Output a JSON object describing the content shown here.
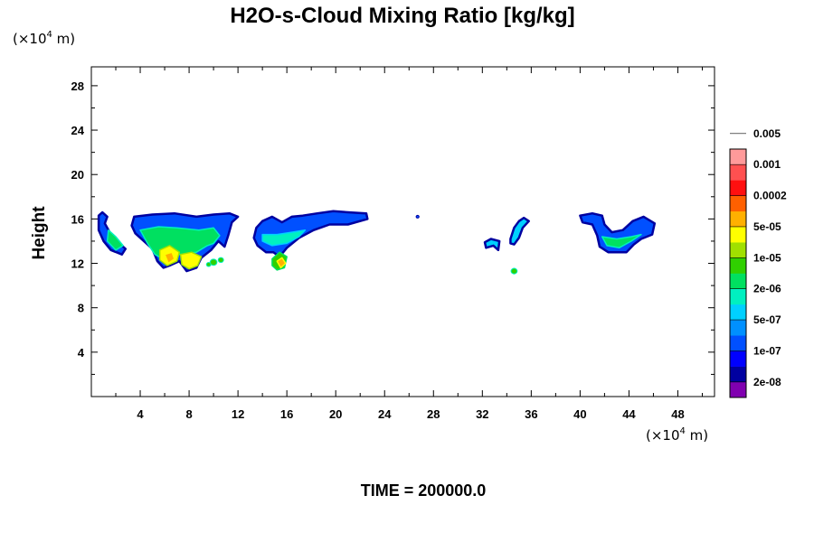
{
  "chart_data": {
    "type": "heatmap",
    "title": "H2O-s-Cloud Mixing Ratio [kg/kg]",
    "ylabel": "Height",
    "xlabel": "",
    "x_unit_prefix": "(×10",
    "x_unit_exp": "4",
    "x_unit_suffix": " m)",
    "y_unit_prefix": "(×10",
    "y_unit_exp": "4",
    "y_unit_suffix": " m)",
    "xlim": [
      0,
      51
    ],
    "ylim": [
      0,
      29.7
    ],
    "x_ticks": [
      4,
      8,
      12,
      16,
      20,
      24,
      28,
      32,
      36,
      40,
      44,
      48
    ],
    "x_tick_labels": [
      "4",
      "8",
      "12",
      "16",
      "20",
      "24",
      "28",
      "32",
      "36",
      "40",
      "44",
      "48"
    ],
    "y_ticks": [
      4,
      8,
      12,
      16,
      20,
      24,
      28
    ],
    "y_tick_labels": [
      "4",
      "8",
      "12",
      "16",
      "20",
      "24",
      "28"
    ],
    "colorbar": {
      "colors": [
        "#8000b0",
        "#0000a0",
        "#0000ff",
        "#0050ff",
        "#0090ff",
        "#00d0ff",
        "#00f0c0",
        "#00e060",
        "#30d000",
        "#a0e000",
        "#ffff00",
        "#ffb000",
        "#ff6000",
        "#ff1010",
        "#ff5050",
        "#ff9a9a"
      ],
      "labels": [
        "2e-08",
        "1e-07",
        "5e-07",
        "2e-06",
        "1e-05",
        "5e-05",
        "0.0002",
        "0.001",
        "0.005"
      ]
    },
    "cloud_regions": [
      {
        "name": "cloud-1",
        "outline": [
          [
            0.6,
            16.3
          ],
          [
            0.9,
            16.6
          ],
          [
            1.3,
            16.2
          ],
          [
            1.1,
            15.6
          ],
          [
            1.5,
            14.8
          ],
          [
            2.1,
            14.0
          ],
          [
            2.8,
            13.3
          ],
          [
            2.5,
            12.8
          ],
          [
            1.6,
            13.2
          ],
          [
            1.0,
            14.0
          ],
          [
            0.6,
            15.0
          ]
        ],
        "level": 3
      },
      {
        "name": "cloud-2",
        "outline": [
          [
            3.5,
            16.2
          ],
          [
            5.0,
            16.4
          ],
          [
            6.8,
            16.5
          ],
          [
            8.6,
            16.2
          ],
          [
            10.0,
            16.4
          ],
          [
            11.3,
            16.5
          ],
          [
            12.0,
            16.2
          ],
          [
            11.5,
            15.7
          ],
          [
            11.2,
            14.5
          ],
          [
            10.9,
            13.5
          ],
          [
            10.4,
            14.0
          ],
          [
            9.8,
            13.2
          ],
          [
            9.0,
            12.5
          ],
          [
            8.6,
            11.6
          ],
          [
            7.8,
            11.3
          ],
          [
            7.2,
            12.2
          ],
          [
            6.4,
            11.8
          ],
          [
            5.9,
            11.6
          ],
          [
            5.4,
            12.2
          ],
          [
            5.0,
            13.3
          ],
          [
            4.3,
            14.0
          ],
          [
            3.6,
            14.7
          ],
          [
            3.3,
            15.4
          ]
        ],
        "level": 3
      },
      {
        "name": "cloud-3",
        "outline": [
          [
            13.5,
            15.2
          ],
          [
            14.0,
            15.8
          ],
          [
            14.8,
            16.2
          ],
          [
            15.6,
            15.7
          ],
          [
            16.4,
            16.2
          ],
          [
            17.3,
            16.3
          ],
          [
            18.5,
            16.5
          ],
          [
            19.8,
            16.7
          ],
          [
            21.0,
            16.6
          ],
          [
            22.5,
            16.5
          ],
          [
            22.6,
            16.0
          ],
          [
            21.0,
            15.5
          ],
          [
            19.5,
            15.5
          ],
          [
            18.2,
            15.0
          ],
          [
            17.0,
            14.3
          ],
          [
            16.0,
            13.4
          ],
          [
            15.4,
            12.6
          ],
          [
            14.9,
            13.0
          ],
          [
            14.3,
            13.0
          ],
          [
            13.6,
            13.6
          ],
          [
            13.3,
            14.3
          ]
        ],
        "level": 3
      },
      {
        "name": "cloud-4",
        "outline": [
          [
            32.2,
            13.9
          ],
          [
            32.7,
            14.2
          ],
          [
            33.4,
            14.0
          ],
          [
            33.3,
            13.2
          ],
          [
            32.9,
            13.6
          ],
          [
            32.3,
            13.4
          ]
        ],
        "level": 5
      },
      {
        "name": "cloud-5",
        "outline": [
          [
            34.3,
            14.2
          ],
          [
            34.6,
            15.2
          ],
          [
            35.0,
            15.8
          ],
          [
            35.4,
            16.1
          ],
          [
            35.8,
            15.8
          ],
          [
            35.3,
            15.2
          ],
          [
            35.0,
            14.3
          ],
          [
            34.6,
            13.7
          ],
          [
            34.3,
            13.8
          ]
        ],
        "level": 5
      },
      {
        "name": "cloud-6",
        "outline": [
          [
            40.0,
            16.3
          ],
          [
            41.0,
            16.5
          ],
          [
            41.8,
            16.3
          ],
          [
            42.0,
            15.5
          ],
          [
            42.6,
            14.8
          ],
          [
            43.5,
            15.0
          ],
          [
            44.3,
            15.8
          ],
          [
            45.2,
            16.2
          ],
          [
            46.1,
            15.6
          ],
          [
            45.9,
            14.6
          ],
          [
            45.0,
            14.2
          ],
          [
            44.4,
            13.7
          ],
          [
            43.8,
            13.0
          ],
          [
            42.3,
            13.0
          ],
          [
            41.6,
            13.5
          ],
          [
            41.4,
            14.5
          ],
          [
            41.0,
            15.5
          ],
          [
            40.2,
            15.7
          ]
        ],
        "level": 3
      }
    ],
    "cloud_cores": [
      {
        "name": "core-1",
        "outline": [
          [
            1.4,
            15.0
          ],
          [
            2.0,
            14.4
          ],
          [
            2.6,
            13.6
          ],
          [
            2.0,
            13.2
          ],
          [
            1.3,
            14.0
          ]
        ],
        "level": 7
      },
      {
        "name": "core-2",
        "outline": [
          [
            4.0,
            15.0
          ],
          [
            5.5,
            15.3
          ],
          [
            7.0,
            15.2
          ],
          [
            8.8,
            15.0
          ],
          [
            10.0,
            15.2
          ],
          [
            10.5,
            14.5
          ],
          [
            10.0,
            13.8
          ],
          [
            9.5,
            13.6
          ],
          [
            8.6,
            13.0
          ],
          [
            7.2,
            12.8
          ],
          [
            6.2,
            12.2
          ],
          [
            5.2,
            12.8
          ],
          [
            4.6,
            13.8
          ]
        ],
        "level": 7
      },
      {
        "name": "core-3",
        "outline": [
          [
            5.6,
            13.2
          ],
          [
            6.4,
            13.6
          ],
          [
            7.2,
            13.0
          ],
          [
            7.0,
            12.2
          ],
          [
            6.2,
            11.8
          ],
          [
            5.6,
            12.3
          ]
        ],
        "level": 10
      },
      {
        "name": "core-4",
        "outline": [
          [
            7.3,
            12.8
          ],
          [
            8.2,
            13.0
          ],
          [
            9.0,
            12.6
          ],
          [
            8.7,
            11.8
          ],
          [
            8.0,
            11.5
          ],
          [
            7.4,
            11.9
          ]
        ],
        "level": 10
      },
      {
        "name": "core-5",
        "outline": [
          [
            14.0,
            14.6
          ],
          [
            15.2,
            14.6
          ],
          [
            16.4,
            14.8
          ],
          [
            17.5,
            15.0
          ],
          [
            17.0,
            14.4
          ],
          [
            16.0,
            13.8
          ],
          [
            14.8,
            13.6
          ],
          [
            14.0,
            14.0
          ]
        ],
        "level": 6
      },
      {
        "name": "core-6",
        "outline": [
          [
            14.8,
            12.4
          ],
          [
            15.4,
            13.0
          ],
          [
            16.0,
            12.6
          ],
          [
            15.8,
            11.6
          ],
          [
            15.2,
            11.4
          ],
          [
            14.8,
            11.8
          ]
        ],
        "level": 8
      },
      {
        "name": "core-7",
        "outline": [
          [
            41.8,
            14.4
          ],
          [
            43.0,
            14.2
          ],
          [
            44.2,
            14.4
          ],
          [
            45.0,
            14.6
          ],
          [
            44.2,
            14.0
          ],
          [
            43.2,
            13.4
          ],
          [
            42.2,
            13.6
          ]
        ],
        "level": 7
      },
      {
        "name": "core-8",
        "outline": [
          [
            15.2,
            12.2
          ],
          [
            15.6,
            12.5
          ],
          [
            15.9,
            12.0
          ],
          [
            15.5,
            11.6
          ]
        ],
        "level": 11
      },
      {
        "name": "core-9",
        "outline": [
          [
            6.0,
            12.8
          ],
          [
            6.6,
            13.0
          ],
          [
            6.8,
            12.4
          ],
          [
            6.3,
            12.0
          ]
        ],
        "level": 11
      }
    ],
    "blobs": [
      {
        "name": "blob-1",
        "x": 10.0,
        "y": 12.1,
        "r": 0.28,
        "level": 8
      },
      {
        "name": "blob-2",
        "x": 10.6,
        "y": 12.3,
        "r": 0.22,
        "level": 8
      },
      {
        "name": "blob-3",
        "x": 9.6,
        "y": 11.9,
        "r": 0.18,
        "level": 8
      },
      {
        "name": "blob-4",
        "x": 34.6,
        "y": 11.3,
        "r": 0.25,
        "level": 8
      },
      {
        "name": "blob-5",
        "x": 26.7,
        "y": 16.2,
        "r": 0.12,
        "level": 3
      }
    ],
    "caption_label": "TIME = ",
    "time_value": "200000.0"
  }
}
